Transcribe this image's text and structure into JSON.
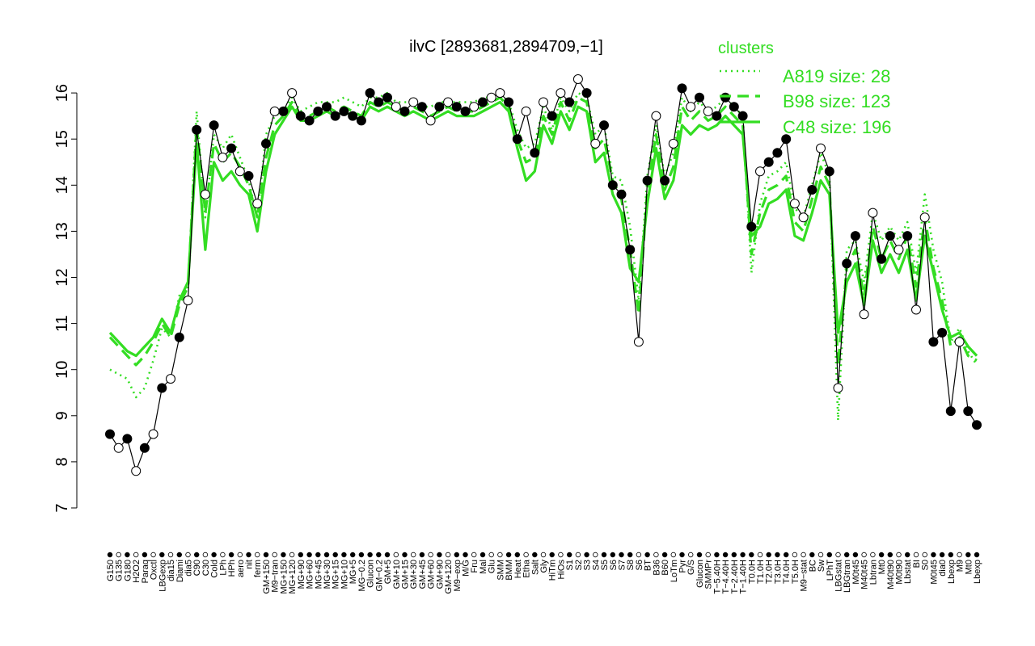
{
  "chart_data": {
    "type": "line",
    "title": "ilvC [2893681,2894709,−1]",
    "xlabel": "",
    "ylabel": "",
    "ylim": [
      7,
      16.5
    ],
    "y_ticks": [
      7,
      8,
      9,
      10,
      11,
      12,
      13,
      14,
      15,
      16
    ],
    "grid": false,
    "legend": {
      "title": "clusters",
      "position": "top-right",
      "entries": [
        "A819 size: 28",
        "B98 size: 123",
        "C48 size: 196"
      ],
      "styles": [
        "dotted",
        "dashed",
        "solid"
      ]
    },
    "x_tick_labels": [
      "G150",
      "G135",
      "G180",
      "H2O2",
      "Paraq",
      "Oxctl",
      "LBGexp",
      "dia15",
      "Diami",
      "dia5",
      "C90",
      "C30",
      "Cold",
      "LPh",
      "HPh",
      "aero",
      "nit",
      "ferm",
      "GM+150",
      "M9−tran",
      "MG+150",
      "MG+120",
      "MG+90",
      "MG+60",
      "MG+45",
      "MG+30",
      "MG+15",
      "MG+10",
      "MG+5",
      "MG−0.2",
      "Glucon",
      "GM−0.2",
      "GM+5",
      "GM+10",
      "GM+15",
      "GM+30",
      "GM+45",
      "GM+60",
      "GM+90",
      "GM+120",
      "M9−exp",
      "M/G",
      "Fru",
      "Mal",
      "Glu",
      "SMM",
      "BMM",
      "Heat",
      "Etha",
      "Salt",
      "Gly",
      "HiTm",
      "HiOs",
      "S1",
      "S2",
      "S3",
      "S4",
      "S5",
      "S6",
      "S7",
      "S8",
      "S6",
      "BT",
      "B36",
      "B60",
      "LoTm",
      "Pyr",
      "G/S",
      "Glucon",
      "SMMPr",
      "T−5.40H",
      "T−4.40H",
      "T−2.40H",
      "T−1.40H",
      "T0.0H",
      "T1.0H",
      "T2.0H",
      "T3.0H",
      "T4.0H",
      "T5.0H",
      "M9−stat",
      "BC",
      "Sw",
      "LPhT",
      "LBGstat",
      "LBGtran",
      "M0t45",
      "M40t45",
      "Lbtran",
      "Mt0",
      "M40t90",
      "M0t90",
      "Lbstat",
      "BI",
      "S0",
      "M0t45",
      "dia0",
      "Lbexp",
      "M9",
      "Mt0",
      "Lbexp"
    ],
    "series": [
      {
        "values": [
          8.6,
          8.3,
          8.5,
          7.8,
          8.3,
          8.6,
          9.6,
          9.8,
          10.7,
          11.5,
          15.2,
          13.8,
          15.3,
          14.6,
          14.8,
          14.3,
          14.2,
          13.6,
          14.9,
          15.6,
          15.6,
          16.0,
          15.5,
          15.4,
          15.6,
          15.7,
          15.5,
          15.6,
          15.5,
          15.4,
          16.0,
          15.8,
          15.9,
          15.7,
          15.6,
          15.8,
          15.7,
          15.4,
          15.7,
          15.8,
          15.7,
          15.6,
          15.7,
          15.8,
          15.9,
          16.0,
          15.8,
          15.0,
          15.6,
          14.7,
          15.8,
          15.5,
          16.0,
          15.8,
          16.3,
          16.0,
          14.9,
          15.3,
          14.0,
          13.8,
          12.6,
          10.6,
          14.1,
          15.5,
          14.1,
          14.9,
          16.1,
          15.7,
          15.9,
          15.6,
          15.5,
          15.9,
          15.7,
          15.5,
          13.1,
          14.3,
          14.5,
          14.7,
          15.0,
          13.6,
          13.3,
          13.9,
          14.8,
          14.3,
          9.6,
          12.3,
          12.9,
          11.2,
          13.4,
          12.4,
          12.9,
          12.6,
          12.9,
          11.3,
          13.3,
          10.6,
          10.8,
          9.1,
          10.6,
          9.1,
          8.8
        ],
        "marker_filled": [
          true,
          false,
          true,
          false,
          true,
          false,
          true,
          false,
          true,
          false,
          true,
          false,
          true,
          false,
          true,
          false,
          true,
          false,
          true,
          false,
          true,
          false,
          true,
          true,
          true,
          true,
          true,
          true,
          true,
          true,
          true,
          true,
          true,
          false,
          true,
          false,
          true,
          false,
          true,
          false,
          true,
          true,
          false,
          true,
          false,
          false,
          true,
          true,
          false,
          true,
          false,
          true,
          false,
          true,
          false,
          true,
          false,
          true,
          true,
          true,
          true,
          false,
          true,
          false,
          true,
          false,
          true,
          false,
          true,
          false,
          true,
          true,
          true,
          true,
          true,
          false,
          true,
          true,
          true,
          false,
          false,
          true,
          false,
          true,
          false,
          true,
          true,
          false,
          false,
          true,
          true,
          false,
          true,
          false,
          false,
          true,
          true,
          true,
          false,
          true,
          true
        ]
      },
      {
        "name": "A819 size: 28",
        "values": [
          10.0,
          9.9,
          9.8,
          9.4,
          9.6,
          10.2,
          10.9,
          10.7,
          11.6,
          11.8,
          15.6,
          13.3,
          15.1,
          14.8,
          15.1,
          14.6,
          14.1,
          13.3,
          15.1,
          15.5,
          15.6,
          15.9,
          15.6,
          15.7,
          15.8,
          15.8,
          15.8,
          15.9,
          15.8,
          15.7,
          15.9,
          15.9,
          16.0,
          15.8,
          15.8,
          15.8,
          15.7,
          15.7,
          15.8,
          15.8,
          15.8,
          15.8,
          15.8,
          15.9,
          15.9,
          16.0,
          15.8,
          15.2,
          14.8,
          14.9,
          15.7,
          15.2,
          15.9,
          15.6,
          16.0,
          15.9,
          15.1,
          15.3,
          14.2,
          14.1,
          13.1,
          11.5,
          14.2,
          15.3,
          14.2,
          14.7,
          15.9,
          15.6,
          15.8,
          15.6,
          15.7,
          15.9,
          15.7,
          15.5,
          12.1,
          13.6,
          14.2,
          14.3,
          14.5,
          13.5,
          13.3,
          14.0,
          14.7,
          14.2,
          8.9,
          12.6,
          12.8,
          11.9,
          13.4,
          12.8,
          13.1,
          12.8,
          13.2,
          12.1,
          13.8,
          12.6,
          11.9,
          10.6,
          10.9,
          10.4,
          10.1
        ]
      },
      {
        "name": "B98 size: 123",
        "values": [
          10.7,
          10.5,
          10.3,
          10.1,
          10.3,
          10.6,
          11.0,
          10.7,
          11.4,
          11.8,
          15.3,
          13.4,
          14.9,
          14.5,
          14.7,
          14.4,
          14.0,
          13.3,
          14.6,
          15.3,
          15.5,
          15.8,
          15.5,
          15.5,
          15.6,
          15.7,
          15.6,
          15.7,
          15.6,
          15.5,
          15.8,
          15.7,
          15.8,
          15.7,
          15.6,
          15.7,
          15.6,
          15.5,
          15.6,
          15.7,
          15.6,
          15.6,
          15.6,
          15.7,
          15.8,
          15.9,
          15.7,
          15.0,
          14.5,
          14.6,
          15.5,
          15.1,
          15.8,
          15.4,
          15.9,
          15.8,
          14.8,
          15.0,
          14.1,
          13.7,
          12.6,
          11.2,
          13.9,
          15.1,
          13.9,
          14.4,
          15.7,
          15.4,
          15.6,
          15.4,
          15.5,
          15.7,
          15.5,
          15.3,
          12.5,
          13.4,
          13.9,
          14.0,
          14.2,
          13.2,
          13.0,
          13.7,
          14.4,
          14.0,
          10.1,
          12.2,
          12.6,
          11.6,
          13.1,
          12.4,
          12.8,
          12.4,
          12.9,
          11.8,
          13.3,
          12.2,
          11.5,
          10.5,
          10.7,
          10.3,
          10.2
        ]
      },
      {
        "name": "C48 size: 196",
        "values": [
          10.8,
          10.6,
          10.4,
          10.3,
          10.5,
          10.7,
          11.1,
          10.8,
          11.5,
          11.9,
          14.9,
          12.6,
          14.5,
          14.1,
          14.3,
          14.0,
          13.8,
          13.0,
          14.3,
          15.1,
          15.4,
          15.7,
          15.4,
          15.4,
          15.5,
          15.6,
          15.5,
          15.6,
          15.5,
          15.4,
          15.7,
          15.6,
          15.7,
          15.6,
          15.5,
          15.6,
          15.5,
          15.4,
          15.5,
          15.6,
          15.5,
          15.5,
          15.5,
          15.6,
          15.7,
          15.8,
          15.6,
          14.8,
          14.1,
          14.3,
          15.3,
          14.9,
          15.6,
          15.2,
          15.7,
          15.6,
          14.5,
          14.7,
          13.8,
          13.4,
          12.2,
          11.9,
          13.6,
          14.8,
          13.7,
          14.1,
          15.3,
          15.1,
          15.3,
          15.2,
          15.3,
          15.5,
          15.3,
          15.1,
          12.9,
          13.1,
          13.6,
          13.7,
          13.9,
          12.9,
          12.8,
          13.4,
          14.1,
          13.8,
          10.8,
          11.9,
          12.3,
          11.4,
          12.8,
          12.1,
          12.5,
          12.1,
          12.6,
          11.5,
          12.9,
          12.1,
          11.3,
          10.7,
          10.8,
          10.5,
          10.3
        ]
      }
    ]
  }
}
